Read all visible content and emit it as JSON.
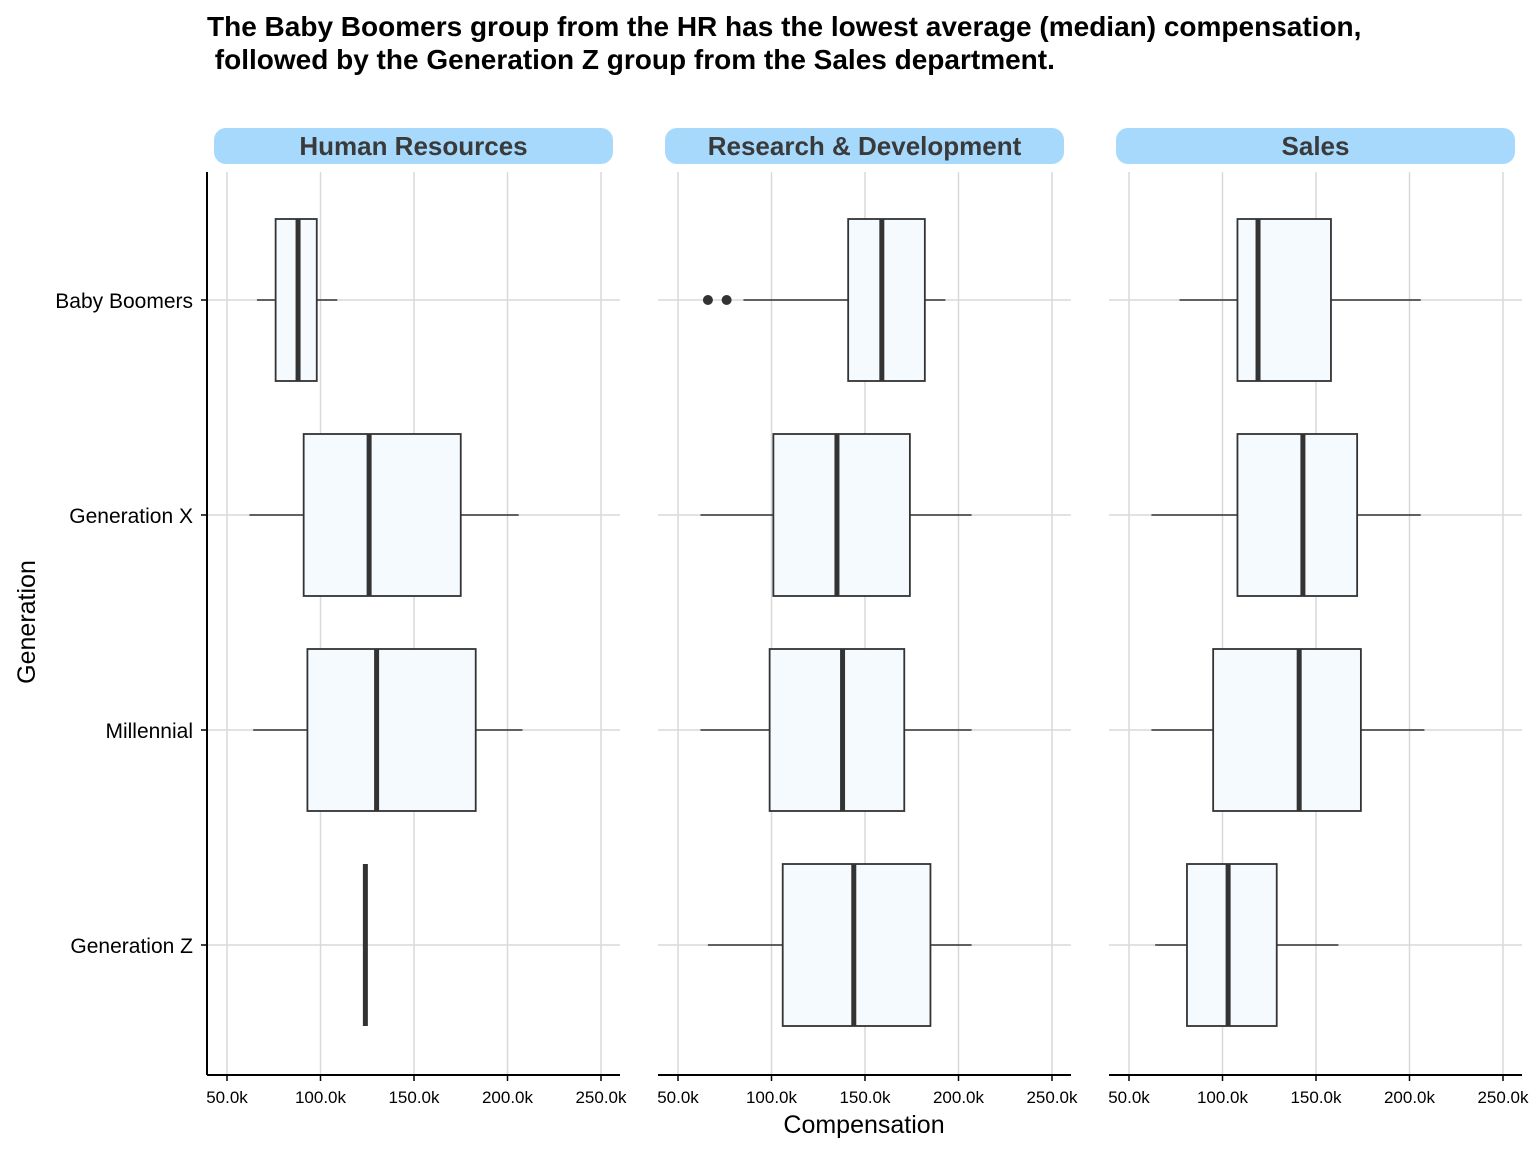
{
  "title": {
    "line1": "The Baby Boomers group from the HR has the lowest average (median) compensation,",
    "line2": " followed by the Generation Z group from the Sales department."
  },
  "colors": {
    "strip_fill": "#a6d9fb",
    "box_fill": "#f5faff",
    "box_stroke": "#333333",
    "grid": "#d9d9d9"
  },
  "chart_data": {
    "type": "boxplot",
    "xlabel": "Compensation",
    "ylabel": "Generation",
    "xlim": [
      40000,
      260000
    ],
    "x_ticks": [
      50000,
      100000,
      150000,
      200000,
      250000
    ],
    "x_tick_labels": [
      "50.0k",
      "100.0k",
      "150.0k",
      "200.0k",
      "250.0k"
    ],
    "categories": [
      "Baby Boomers",
      "Generation X",
      "Millennial",
      "Generation Z"
    ],
    "grid": true,
    "facets": [
      {
        "name": "Human Resources",
        "boxes": [
          {
            "generation": "Baby Boomers",
            "whisker_low": 66000,
            "q1": 76000,
            "median": 88000,
            "q3": 98000,
            "whisker_high": 109000,
            "outliers": []
          },
          {
            "generation": "Generation X",
            "whisker_low": 62000,
            "q1": 91000,
            "median": 126000,
            "q3": 175000,
            "whisker_high": 206000,
            "outliers": []
          },
          {
            "generation": "Millennial",
            "whisker_low": 64000,
            "q1": 93000,
            "median": 130000,
            "q3": 183000,
            "whisker_high": 208000,
            "outliers": []
          },
          {
            "generation": "Generation Z",
            "whisker_low": 124000,
            "q1": 124000,
            "median": 124000,
            "q3": 124000,
            "whisker_high": 124000,
            "outliers": []
          }
        ]
      },
      {
        "name": "Research & Development",
        "boxes": [
          {
            "generation": "Baby Boomers",
            "whisker_low": 85000,
            "q1": 141000,
            "median": 159000,
            "q3": 182000,
            "whisker_high": 193000,
            "outliers": [
              66000,
              76000
            ]
          },
          {
            "generation": "Generation X",
            "whisker_low": 62000,
            "q1": 101000,
            "median": 135000,
            "q3": 174000,
            "whisker_high": 207000,
            "outliers": []
          },
          {
            "generation": "Millennial",
            "whisker_low": 62000,
            "q1": 99000,
            "median": 138000,
            "q3": 171000,
            "whisker_high": 207000,
            "outliers": []
          },
          {
            "generation": "Generation Z",
            "whisker_low": 66000,
            "q1": 106000,
            "median": 144000,
            "q3": 185000,
            "whisker_high": 207000,
            "outliers": []
          }
        ]
      },
      {
        "name": "Sales",
        "boxes": [
          {
            "generation": "Baby Boomers",
            "whisker_low": 77000,
            "q1": 108000,
            "median": 119000,
            "q3": 158000,
            "whisker_high": 206000,
            "outliers": []
          },
          {
            "generation": "Generation X",
            "whisker_low": 62000,
            "q1": 108000,
            "median": 143000,
            "q3": 172000,
            "whisker_high": 206000,
            "outliers": []
          },
          {
            "generation": "Millennial",
            "whisker_low": 62000,
            "q1": 95000,
            "median": 141000,
            "q3": 174000,
            "whisker_high": 208000,
            "outliers": []
          },
          {
            "generation": "Generation Z",
            "whisker_low": 64000,
            "q1": 81000,
            "median": 103000,
            "q3": 129000,
            "whisker_high": 162000,
            "outliers": []
          }
        ]
      }
    ]
  }
}
